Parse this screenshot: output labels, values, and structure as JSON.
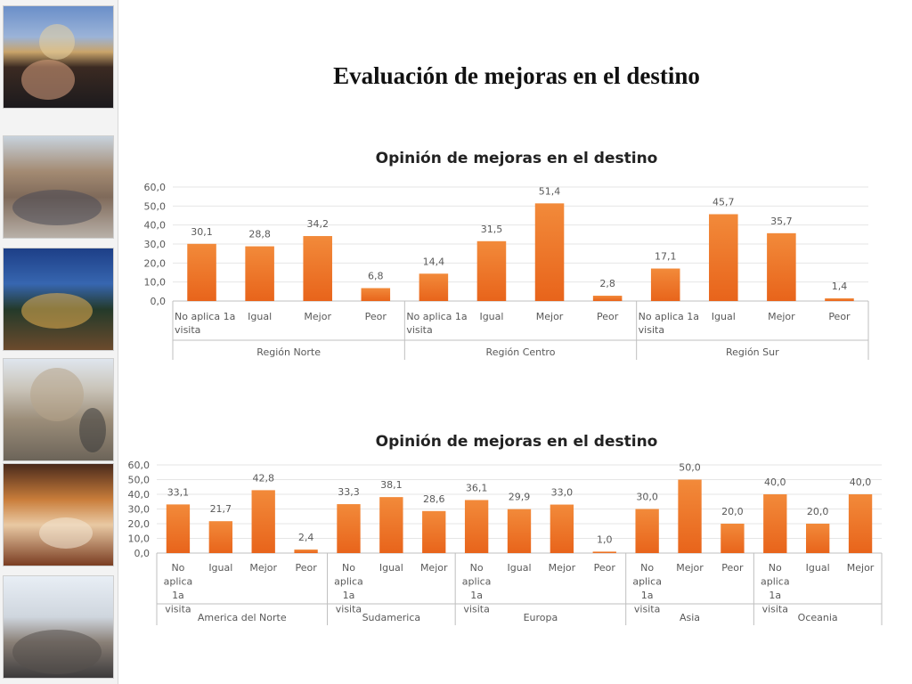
{
  "page": {
    "title": "Evaluación de mejoras en el destino"
  },
  "photos": [
    "city-cathedral-photo",
    "street-crowd-photo",
    "night-courtyard-photo",
    "church-plaza-photo",
    "hotel-room-photo",
    "airport-travelers-photo"
  ],
  "colors": {
    "bar_top": "#f28a3a",
    "bar_bottom": "#e8641b",
    "axis": "#bfbfbf",
    "grid": "#e6e6e6",
    "text": "#595959"
  },
  "chart_data": [
    {
      "type": "bar",
      "title": "Opinión de mejoras en el destino",
      "xlabel": "",
      "ylabel": "",
      "ylim": [
        0,
        60
      ],
      "y_ticks": [
        "0,0",
        "10,0",
        "20,0",
        "30,0",
        "40,0",
        "50,0",
        "60,0"
      ],
      "grid": true,
      "legend": "none",
      "groups": [
        {
          "name": "Región Norte",
          "categories": [
            "No aplica 1a visita",
            "Igual",
            "Mejor",
            "Peor"
          ],
          "values": [
            30.1,
            28.8,
            34.2,
            6.8
          ],
          "labels": [
            "30,1",
            "28,8",
            "34,2",
            "6,8"
          ]
        },
        {
          "name": "Región Centro",
          "categories": [
            "No aplica 1a visita",
            "Igual",
            "Mejor",
            "Peor"
          ],
          "values": [
            14.4,
            31.5,
            51.4,
            2.8
          ],
          "labels": [
            "14,4",
            "31,5",
            "51,4",
            "2,8"
          ]
        },
        {
          "name": "Región Sur",
          "categories": [
            "No aplica 1a visita",
            "Igual",
            "Mejor",
            "Peor"
          ],
          "values": [
            17.1,
            45.7,
            35.7,
            1.4
          ],
          "labels": [
            "17,1",
            "45,7",
            "35,7",
            "1,4"
          ]
        }
      ]
    },
    {
      "type": "bar",
      "title": "Opinión de mejoras en el destino",
      "xlabel": "",
      "ylabel": "",
      "ylim": [
        0,
        60
      ],
      "y_ticks": [
        "0,0",
        "10,0",
        "20,0",
        "30,0",
        "40,0",
        "50,0",
        "60,0"
      ],
      "grid": true,
      "legend": "none",
      "groups": [
        {
          "name": "America del Norte",
          "categories": [
            "No aplica 1a visita",
            "Igual",
            "Mejor",
            "Peor"
          ],
          "values": [
            33.1,
            21.7,
            42.8,
            2.4
          ],
          "labels": [
            "33,1",
            "21,7",
            "42,8",
            "2,4"
          ]
        },
        {
          "name": "Sudamerica",
          "categories": [
            "No aplica 1a visita",
            "Igual",
            "Mejor"
          ],
          "values": [
            33.3,
            38.1,
            28.6
          ],
          "labels": [
            "33,3",
            "38,1",
            "28,6"
          ]
        },
        {
          "name": "Europa",
          "categories": [
            "No aplica 1a visita",
            "Igual",
            "Mejor",
            "Peor"
          ],
          "values": [
            36.1,
            29.9,
            33.0,
            1.0
          ],
          "labels": [
            "36,1",
            "29,9",
            "33,0",
            "1,0"
          ]
        },
        {
          "name": "Asia",
          "categories": [
            "No aplica 1a visita",
            "Mejor",
            "Peor"
          ],
          "values": [
            30.0,
            50.0,
            20.0
          ],
          "labels": [
            "30,0",
            "50,0",
            "20,0"
          ]
        },
        {
          "name": "Oceania",
          "categories": [
            "No aplica 1a visita",
            "Igual",
            "Mejor"
          ],
          "values": [
            40.0,
            20.0,
            40.0
          ],
          "labels": [
            "40,0",
            "20,0",
            "40,0"
          ]
        }
      ]
    }
  ]
}
